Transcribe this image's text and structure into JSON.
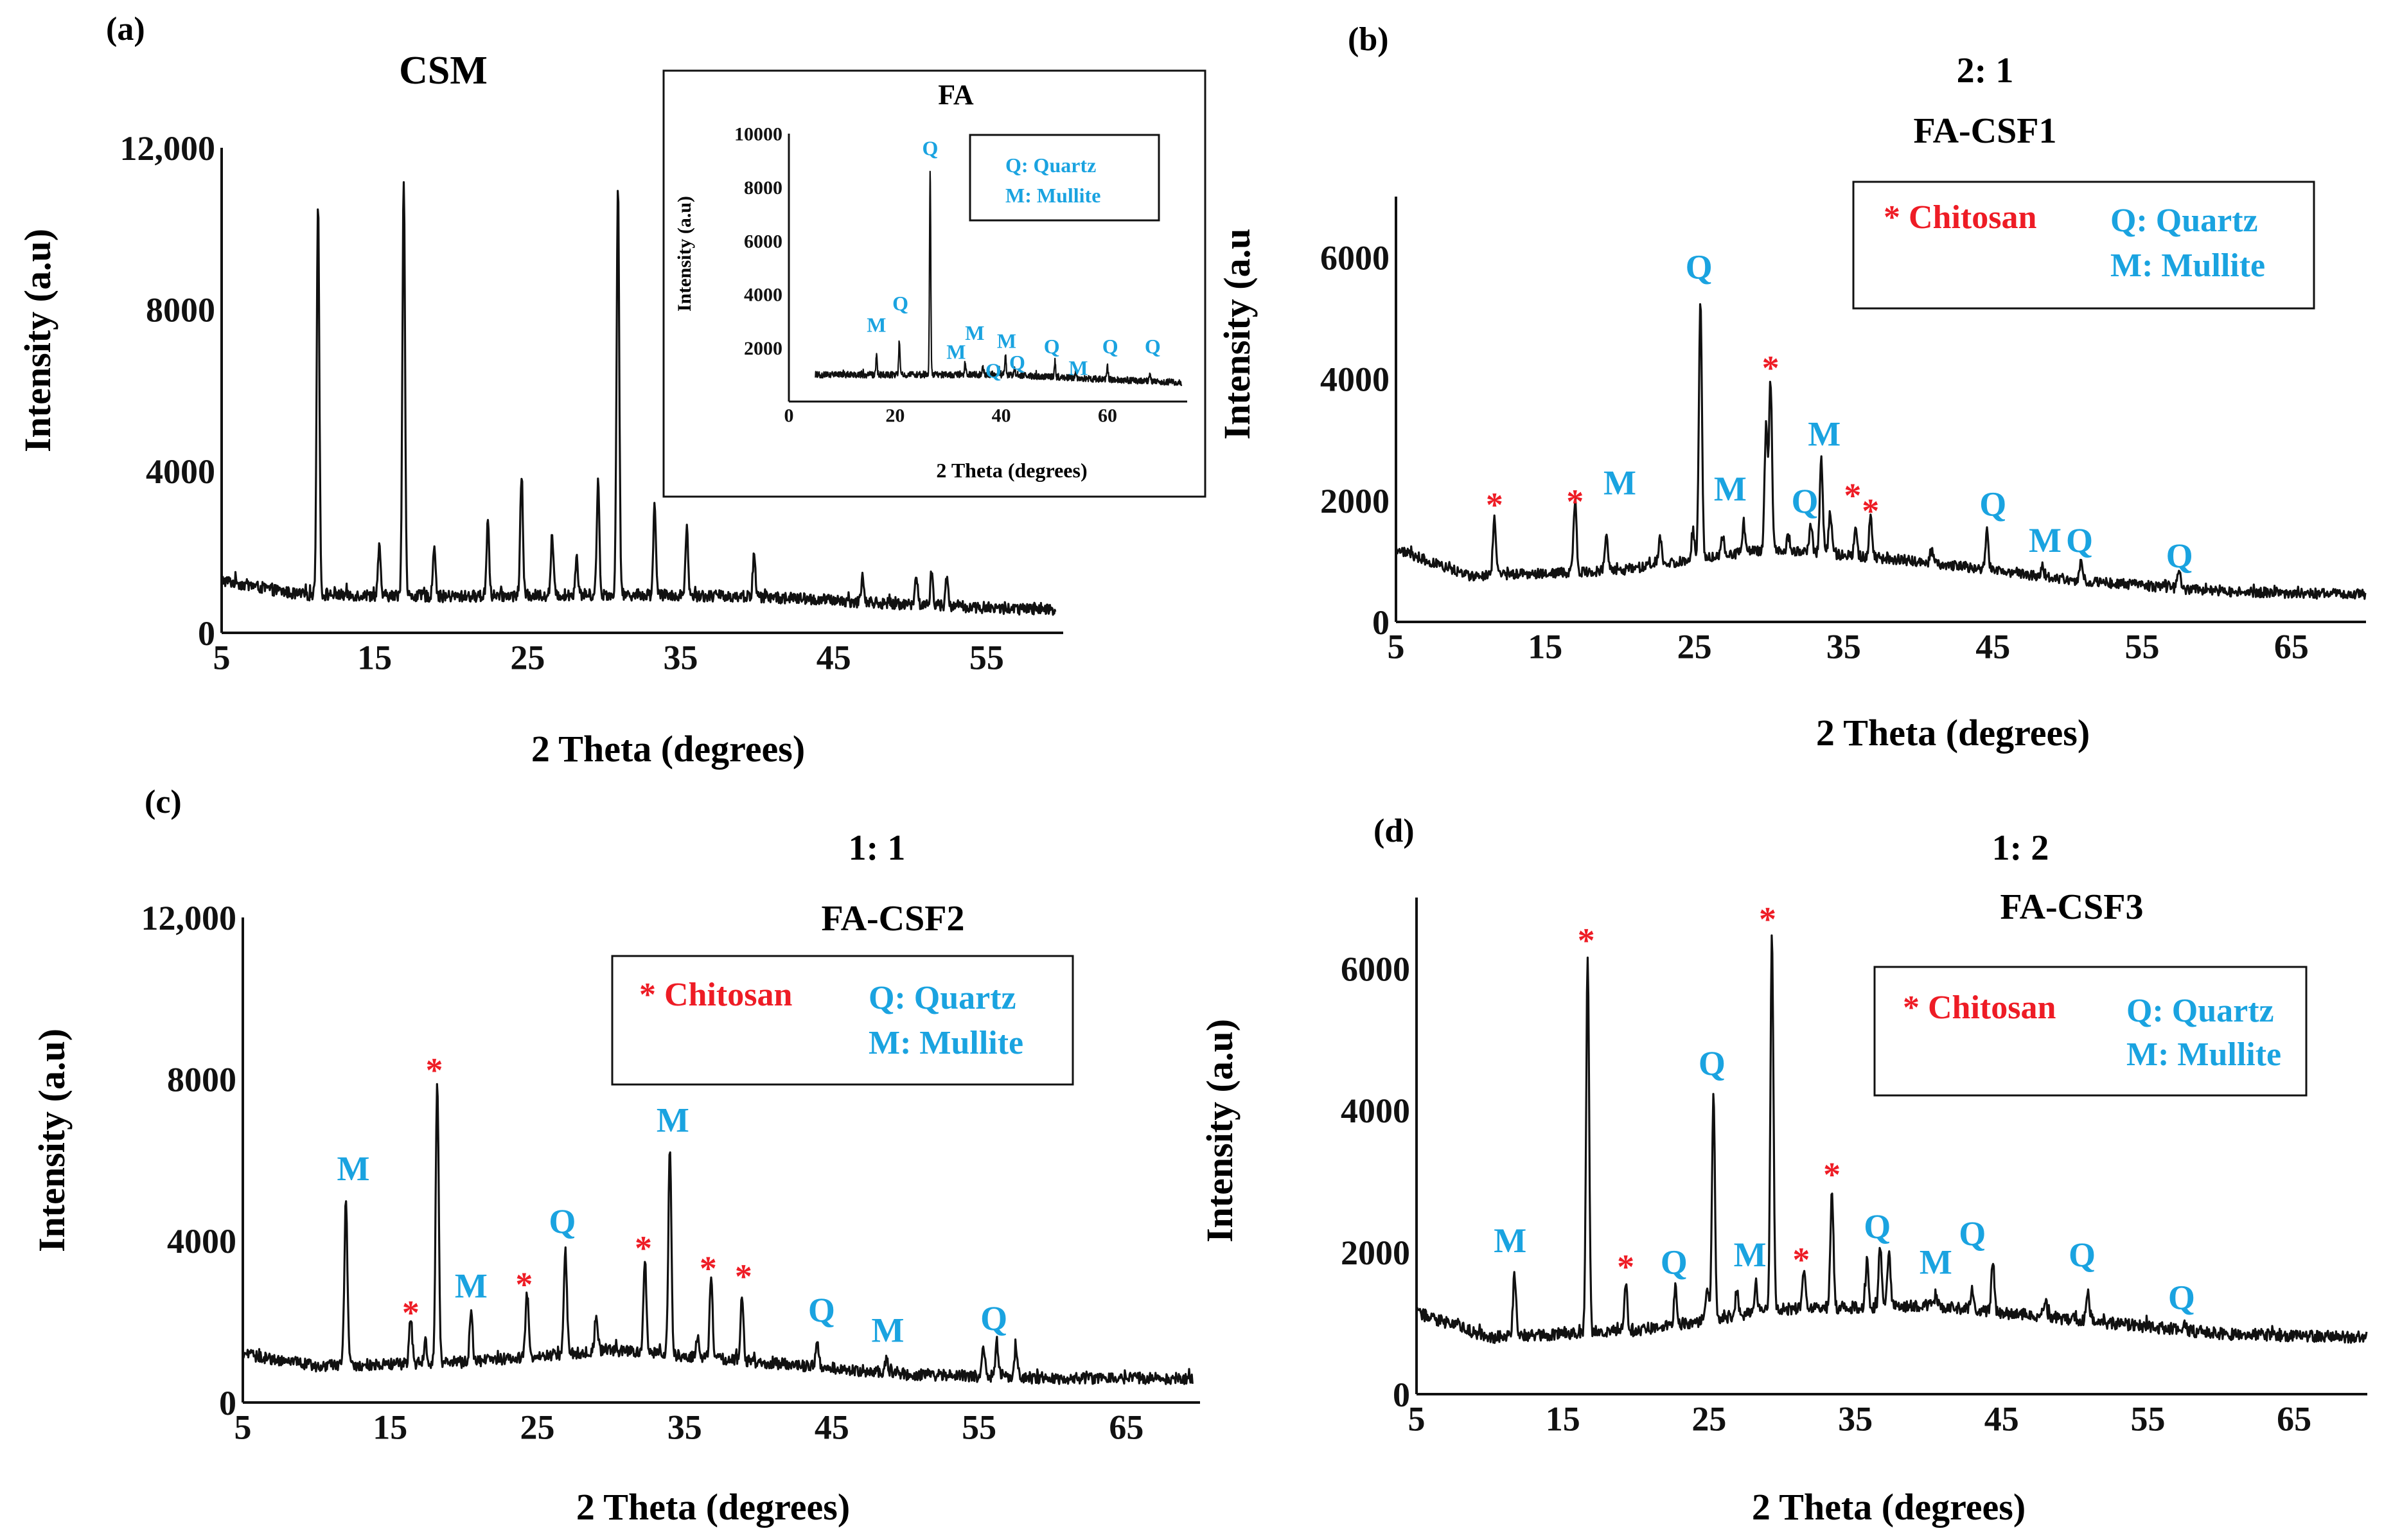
{
  "colors": {
    "trace": "#111111",
    "quartz_label": "#1aa3e0",
    "chitosan_label": "#ee1c25",
    "axis": "#111111",
    "box_border": "#111111"
  },
  "chart_data": [
    {
      "id": "a",
      "type": "line",
      "panel_label": "(a)",
      "ratio": "",
      "title": "CSM",
      "xlabel": "2 Theta (degrees)",
      "ylabel": "Intensity (a.u)",
      "xlim": [
        5,
        60
      ],
      "ylim": [
        0,
        12000
      ],
      "xticks": [
        5,
        15,
        25,
        35,
        45,
        55
      ],
      "xtick_labels": [
        "5",
        "15",
        "25",
        "35",
        "45",
        "55"
      ],
      "yticks": [
        0,
        4000,
        8000,
        12000
      ],
      "ytick_labels": [
        "0",
        "4000",
        "8000",
        "12,000"
      ],
      "grid": false,
      "baseline": [
        [
          5,
          1300
        ],
        [
          10,
          950
        ],
        [
          20,
          900
        ],
        [
          30,
          950
        ],
        [
          40,
          900
        ],
        [
          50,
          700
        ],
        [
          59.5,
          550
        ]
      ],
      "peaks": [
        {
          "x": 11.3,
          "y": 10600
        },
        {
          "x": 15.3,
          "y": 2100
        },
        {
          "x": 16.9,
          "y": 11300
        },
        {
          "x": 18.9,
          "y": 2200
        },
        {
          "x": 22.4,
          "y": 2800
        },
        {
          "x": 24.6,
          "y": 3900
        },
        {
          "x": 26.6,
          "y": 2400
        },
        {
          "x": 28.2,
          "y": 1900
        },
        {
          "x": 29.6,
          "y": 3700
        },
        {
          "x": 30.9,
          "y": 11100
        },
        {
          "x": 33.3,
          "y": 3200
        },
        {
          "x": 35.4,
          "y": 2600
        },
        {
          "x": 39.8,
          "y": 1900
        },
        {
          "x": 46.9,
          "y": 1400
        },
        {
          "x": 50.4,
          "y": 1500
        },
        {
          "x": 51.4,
          "y": 1500
        },
        {
          "x": 52.4,
          "y": 1400
        }
      ],
      "annotations": [],
      "inset": {
        "title": "FA",
        "xlabel": "2 Theta (degrees)",
        "ylabel": "Intensity (a.u)",
        "xlim": [
          0,
          75
        ],
        "ylim": [
          0,
          10000
        ],
        "xticks": [
          0,
          20,
          40,
          60
        ],
        "xtick_labels": [
          "0",
          "20",
          "40",
          "60"
        ],
        "yticks": [
          2000,
          4000,
          6000,
          8000,
          10000
        ],
        "ytick_labels": [
          "2000",
          "4000",
          "6000",
          "8000",
          "10000"
        ],
        "baseline": [
          [
            5,
            1000
          ],
          [
            20,
            1000
          ],
          [
            40,
            1000
          ],
          [
            74,
            700
          ]
        ],
        "peaks": [
          {
            "x": 16.5,
            "y": 1700
          },
          {
            "x": 20.8,
            "y": 2300
          },
          {
            "x": 26.6,
            "y": 8600
          },
          {
            "x": 33.2,
            "y": 1500
          },
          {
            "x": 36.5,
            "y": 1300
          },
          {
            "x": 39.5,
            "y": 1300
          },
          {
            "x": 40.8,
            "y": 1700
          },
          {
            "x": 42.5,
            "y": 1200
          },
          {
            "x": 50.1,
            "y": 1500
          },
          {
            "x": 54.0,
            "y": 1100
          },
          {
            "x": 60.0,
            "y": 1300
          },
          {
            "x": 68.0,
            "y": 1100
          }
        ],
        "annotations": [
          {
            "text": "M",
            "x": 16.5,
            "y": 2600,
            "kind": "quartz"
          },
          {
            "text": "Q",
            "x": 21,
            "y": 3400,
            "kind": "quartz"
          },
          {
            "text": "Q",
            "x": 26.6,
            "y": 9200,
            "kind": "quartz"
          },
          {
            "text": "M",
            "x": 35,
            "y": 2300,
            "kind": "quartz"
          },
          {
            "text": "M",
            "x": 31.5,
            "y": 1600,
            "kind": "quartz"
          },
          {
            "text": "Q",
            "x": 38.5,
            "y": 900,
            "kind": "quartz"
          },
          {
            "text": "M",
            "x": 41,
            "y": 2000,
            "kind": "quartz"
          },
          {
            "text": "Q",
            "x": 43,
            "y": 1200,
            "kind": "quartz"
          },
          {
            "text": "Q",
            "x": 49.5,
            "y": 1800,
            "kind": "quartz"
          },
          {
            "text": "M",
            "x": 54.5,
            "y": 1000,
            "kind": "quartz"
          },
          {
            "text": "Q",
            "x": 60.5,
            "y": 1800,
            "kind": "quartz"
          },
          {
            "text": "Q",
            "x": 68.5,
            "y": 1800,
            "kind": "quartz"
          }
        ],
        "legend": {
          "lines": [
            "Q: Quartz",
            "M: Mullite"
          ]
        }
      }
    },
    {
      "id": "b",
      "type": "line",
      "panel_label": "(b)",
      "ratio": "2: 1",
      "title": "FA-CSF1",
      "xlabel": "2 Theta (degrees)",
      "ylabel": "Intensity (a.u",
      "xlim": [
        5,
        70
      ],
      "ylim": [
        0,
        7000
      ],
      "xticks": [
        5,
        15,
        25,
        35,
        45,
        55,
        65
      ],
      "xtick_labels": [
        "5",
        "15",
        "25",
        "35",
        "45",
        "55",
        "65"
      ],
      "yticks": [
        0,
        2000,
        4000,
        6000
      ],
      "ytick_labels": [
        "0",
        "2000",
        "4000",
        "6000"
      ],
      "grid": false,
      "baseline": [
        [
          5,
          1200
        ],
        [
          10,
          750
        ],
        [
          20,
          850
        ],
        [
          30,
          1200
        ],
        [
          40,
          1000
        ],
        [
          50,
          700
        ],
        [
          60,
          500
        ],
        [
          70,
          450
        ]
      ],
      "peaks": [
        {
          "x": 11.6,
          "y": 1700
        },
        {
          "x": 17.0,
          "y": 2000
        },
        {
          "x": 19.1,
          "y": 1500
        },
        {
          "x": 22.7,
          "y": 1400
        },
        {
          "x": 24.9,
          "y": 1500
        },
        {
          "x": 25.4,
          "y": 5300
        },
        {
          "x": 26.9,
          "y": 1400
        },
        {
          "x": 28.3,
          "y": 1600
        },
        {
          "x": 29.8,
          "y": 3200
        },
        {
          "x": 30.1,
          "y": 3950
        },
        {
          "x": 31.3,
          "y": 1400
        },
        {
          "x": 32.8,
          "y": 1600
        },
        {
          "x": 33.5,
          "y": 2700
        },
        {
          "x": 34.1,
          "y": 1800
        },
        {
          "x": 35.8,
          "y": 1500
        },
        {
          "x": 36.8,
          "y": 1700
        },
        {
          "x": 40.9,
          "y": 1200
        },
        {
          "x": 44.6,
          "y": 1500
        },
        {
          "x": 48.3,
          "y": 900
        },
        {
          "x": 50.9,
          "y": 950
        },
        {
          "x": 57.5,
          "y": 800
        }
      ],
      "annotations": [
        {
          "text": "*",
          "x": 11.6,
          "y": 2050,
          "kind": "chitosan"
        },
        {
          "text": "*",
          "x": 17.0,
          "y": 2100,
          "kind": "chitosan"
        },
        {
          "text": "M",
          "x": 20,
          "y": 2100,
          "kind": "quartz"
        },
        {
          "text": "Q",
          "x": 25.3,
          "y": 5650,
          "kind": "quartz"
        },
        {
          "text": "M",
          "x": 27.4,
          "y": 2000,
          "kind": "quartz"
        },
        {
          "text": "*",
          "x": 30.1,
          "y": 4300,
          "kind": "chitosan"
        },
        {
          "text": "Q",
          "x": 32.4,
          "y": 1800,
          "kind": "quartz"
        },
        {
          "text": "M",
          "x": 33.7,
          "y": 2900,
          "kind": "quartz"
        },
        {
          "text": "*",
          "x": 35.6,
          "y": 2200,
          "kind": "chitosan"
        },
        {
          "text": "*",
          "x": 36.8,
          "y": 1950,
          "kind": "chitosan"
        },
        {
          "text": "Q",
          "x": 45,
          "y": 1750,
          "kind": "quartz"
        },
        {
          "text": "M",
          "x": 48.5,
          "y": 1150,
          "kind": "quartz"
        },
        {
          "text": "Q",
          "x": 50.8,
          "y": 1150,
          "kind": "quartz"
        },
        {
          "text": "Q",
          "x": 57.5,
          "y": 900,
          "kind": "quartz"
        }
      ],
      "legend": {
        "chitosan": "* Chitosan",
        "lines": [
          "Q: Quartz",
          "M: Mullite"
        ]
      }
    },
    {
      "id": "c",
      "type": "line",
      "panel_label": "(c)",
      "ratio": "1: 1",
      "title": "FA-CSF2",
      "xlabel": "2 Theta (degrees)",
      "ylabel": "Intensity (a.u)",
      "xlim": [
        5,
        70
      ],
      "ylim": [
        0,
        12000
      ],
      "xticks": [
        5,
        15,
        25,
        35,
        45,
        55,
        65
      ],
      "xtick_labels": [
        "5",
        "15",
        "25",
        "35",
        "45",
        "55",
        "65"
      ],
      "yticks": [
        0,
        4000,
        8000,
        12000
      ],
      "ytick_labels": [
        "0",
        "4000",
        "8000",
        "12,000"
      ],
      "grid": false,
      "baseline": [
        [
          5,
          1200
        ],
        [
          10,
          900
        ],
        [
          20,
          1000
        ],
        [
          30,
          1300
        ],
        [
          40,
          1000
        ],
        [
          50,
          700
        ],
        [
          60,
          600
        ],
        [
          69.5,
          600
        ]
      ],
      "peaks": [
        {
          "x": 12.0,
          "y": 5100
        },
        {
          "x": 16.4,
          "y": 2100
        },
        {
          "x": 17.4,
          "y": 1500
        },
        {
          "x": 18.2,
          "y": 8000
        },
        {
          "x": 20.5,
          "y": 2200
        },
        {
          "x": 24.3,
          "y": 2700
        },
        {
          "x": 26.9,
          "y": 3800
        },
        {
          "x": 29.0,
          "y": 2200
        },
        {
          "x": 32.3,
          "y": 3600
        },
        {
          "x": 34.0,
          "y": 6300
        },
        {
          "x": 35.9,
          "y": 1700
        },
        {
          "x": 36.8,
          "y": 3200
        },
        {
          "x": 38.9,
          "y": 2600
        },
        {
          "x": 44.0,
          "y": 1600
        },
        {
          "x": 48.7,
          "y": 1100
        },
        {
          "x": 55.3,
          "y": 1400
        },
        {
          "x": 56.2,
          "y": 1500
        },
        {
          "x": 57.5,
          "y": 1400
        }
      ],
      "annotations": [
        {
          "text": "M",
          "x": 12.5,
          "y": 5500,
          "kind": "quartz"
        },
        {
          "text": "*",
          "x": 16.4,
          "y": 2400,
          "kind": "chitosan"
        },
        {
          "text": "*",
          "x": 18.0,
          "y": 8400,
          "kind": "chitosan"
        },
        {
          "text": "M",
          "x": 20.5,
          "y": 2600,
          "kind": "quartz"
        },
        {
          "text": "*",
          "x": 24.1,
          "y": 3100,
          "kind": "chitosan"
        },
        {
          "text": "Q",
          "x": 26.7,
          "y": 4200,
          "kind": "quartz"
        },
        {
          "text": "*",
          "x": 32.2,
          "y": 4000,
          "kind": "chitosan"
        },
        {
          "text": "M",
          "x": 34.2,
          "y": 6700,
          "kind": "quartz"
        },
        {
          "text": "*",
          "x": 36.6,
          "y": 3500,
          "kind": "chitosan"
        },
        {
          "text": "*",
          "x": 39.0,
          "y": 3300,
          "kind": "chitosan"
        },
        {
          "text": "Q",
          "x": 44.3,
          "y": 2000,
          "kind": "quartz"
        },
        {
          "text": "M",
          "x": 48.8,
          "y": 1500,
          "kind": "quartz"
        },
        {
          "text": "Q",
          "x": 56.0,
          "y": 1800,
          "kind": "quartz"
        }
      ],
      "legend": {
        "chitosan": "* Chitosan",
        "lines": [
          "Q: Quartz",
          "M: Mullite"
        ]
      }
    },
    {
      "id": "d",
      "type": "line",
      "panel_label": "(d)",
      "ratio": "1: 2",
      "title": "FA-CSF3",
      "xlabel": "2 Theta (degrees)",
      "ylabel": "Intensity (a.u)",
      "xlim": [
        5,
        70
      ],
      "ylim": [
        0,
        7000
      ],
      "xticks": [
        5,
        15,
        25,
        35,
        45,
        55,
        65
      ],
      "xtick_labels": [
        "5",
        "15",
        "25",
        "35",
        "45",
        "55",
        "65"
      ],
      "yticks": [
        0,
        2000,
        4000,
        6000
      ],
      "ytick_labels": [
        "0",
        "2000",
        "4000",
        "6000"
      ],
      "grid": false,
      "baseline": [
        [
          5,
          1150
        ],
        [
          10,
          800
        ],
        [
          20,
          900
        ],
        [
          30,
          1200
        ],
        [
          40,
          1250
        ],
        [
          50,
          1050
        ],
        [
          60,
          850
        ],
        [
          70,
          800
        ]
      ],
      "peaks": [
        {
          "x": 11.7,
          "y": 1700
        },
        {
          "x": 16.7,
          "y": 6200
        },
        {
          "x": 19.3,
          "y": 1600
        },
        {
          "x": 22.7,
          "y": 1500
        },
        {
          "x": 24.9,
          "y": 1500
        },
        {
          "x": 25.3,
          "y": 4200
        },
        {
          "x": 26.9,
          "y": 1500
        },
        {
          "x": 28.2,
          "y": 1600
        },
        {
          "x": 29.3,
          "y": 6500
        },
        {
          "x": 31.5,
          "y": 1800
        },
        {
          "x": 33.4,
          "y": 2900
        },
        {
          "x": 35.8,
          "y": 1900
        },
        {
          "x": 36.7,
          "y": 2100
        },
        {
          "x": 37.3,
          "y": 2000
        },
        {
          "x": 40.5,
          "y": 1400
        },
        {
          "x": 43.0,
          "y": 1500
        },
        {
          "x": 44.4,
          "y": 1900
        },
        {
          "x": 48.0,
          "y": 1300
        },
        {
          "x": 50.9,
          "y": 1400
        },
        {
          "x": 57.5,
          "y": 1000
        }
      ],
      "annotations": [
        {
          "text": "M",
          "x": 11.4,
          "y": 2000,
          "kind": "quartz"
        },
        {
          "text": "*",
          "x": 16.6,
          "y": 6500,
          "kind": "chitosan"
        },
        {
          "text": "*",
          "x": 19.3,
          "y": 1900,
          "kind": "chitosan"
        },
        {
          "text": "Q",
          "x": 22.6,
          "y": 1700,
          "kind": "quartz"
        },
        {
          "text": "Q",
          "x": 25.2,
          "y": 4500,
          "kind": "quartz"
        },
        {
          "text": "M",
          "x": 27.8,
          "y": 1800,
          "kind": "quartz"
        },
        {
          "text": "*",
          "x": 29.0,
          "y": 6800,
          "kind": "chitosan"
        },
        {
          "text": "*",
          "x": 31.3,
          "y": 2000,
          "kind": "chitosan"
        },
        {
          "text": "*",
          "x": 33.4,
          "y": 3200,
          "kind": "chitosan"
        },
        {
          "text": "Q",
          "x": 36.5,
          "y": 2200,
          "kind": "quartz"
        },
        {
          "text": "M",
          "x": 40.5,
          "y": 1700,
          "kind": "quartz"
        },
        {
          "text": "Q",
          "x": 43.0,
          "y": 2100,
          "kind": "quartz"
        },
        {
          "text": "Q",
          "x": 50.5,
          "y": 1800,
          "kind": "quartz"
        },
        {
          "text": "Q",
          "x": 57.3,
          "y": 1200,
          "kind": "quartz"
        }
      ],
      "legend": {
        "chitosan": "* Chitosan",
        "lines": [
          "Q: Quartz",
          "M: Mullite"
        ]
      }
    }
  ]
}
